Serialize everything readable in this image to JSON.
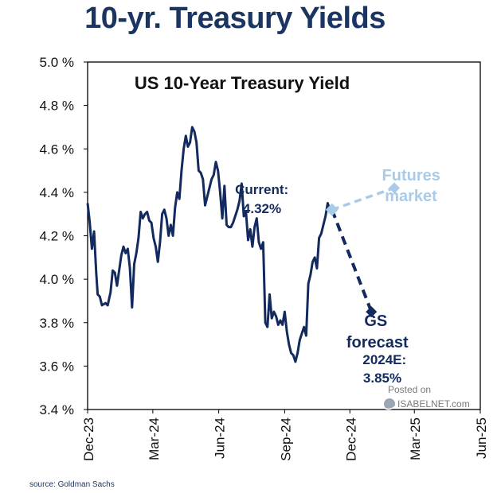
{
  "page_title": "10-yr. Treasury Yields",
  "source_note": "source: Goldman Sachs",
  "watermark": {
    "line1": "Posted on",
    "line2": "ISABELNET.com"
  },
  "colors": {
    "navy": "#132a5e",
    "light_blue": "#a9cbe8",
    "title": "#1b3563"
  },
  "chart_data": {
    "type": "line",
    "title": "US 10-Year Treasury Yield",
    "xlabel": "",
    "ylabel": "",
    "ylim": [
      3.4,
      5.0
    ],
    "xlim": [
      "2023-12-01",
      "2025-06-01"
    ],
    "grid": false,
    "y_ticks": [
      3.4,
      3.6,
      3.8,
      4.0,
      4.2,
      4.4,
      4.6,
      4.8,
      5.0
    ],
    "y_tick_labels": [
      "3.4 %",
      "3.6 %",
      "3.8 %",
      "4.0 %",
      "4.2 %",
      "4.4 %",
      "4.6 %",
      "4.8 %",
      "5.0 %"
    ],
    "x_ticks": [
      "2023-12-01",
      "2024-03-01",
      "2024-06-01",
      "2024-09-01",
      "2024-12-01",
      "2025-03-01",
      "2025-06-01"
    ],
    "x_tick_labels": [
      "Dec-23",
      "Mar-24",
      "Jun-24",
      "Sep-24",
      "Dec-24",
      "Mar-25",
      "Jun-25"
    ],
    "series": [
      {
        "name": "",
        "style": "solid",
        "x": [
          "2023-12-01",
          "2023-12-04",
          "2023-12-07",
          "2023-12-10",
          "2023-12-13",
          "2023-12-15",
          "2023-12-18",
          "2023-12-21",
          "2023-12-26",
          "2023-12-29",
          "2024-01-02",
          "2024-01-05",
          "2024-01-08",
          "2024-01-11",
          "2024-01-14",
          "2024-01-17",
          "2024-01-20",
          "2024-01-23",
          "2024-01-26",
          "2024-01-29",
          "2024-02-01",
          "2024-02-04",
          "2024-02-07",
          "2024-02-10",
          "2024-02-13",
          "2024-02-16",
          "2024-02-19",
          "2024-02-22",
          "2024-02-25",
          "2024-02-28",
          "2024-03-02",
          "2024-03-05",
          "2024-03-08",
          "2024-03-11",
          "2024-03-14",
          "2024-03-17",
          "2024-03-20",
          "2024-03-23",
          "2024-03-26",
          "2024-03-29",
          "2024-04-01",
          "2024-04-04",
          "2024-04-07",
          "2024-04-10",
          "2024-04-13",
          "2024-04-16",
          "2024-04-19",
          "2024-04-22",
          "2024-04-25",
          "2024-04-28",
          "2024-05-01",
          "2024-05-04",
          "2024-05-07",
          "2024-05-10",
          "2024-05-13",
          "2024-05-16",
          "2024-05-19",
          "2024-05-22",
          "2024-05-25",
          "2024-05-28",
          "2024-05-31",
          "2024-06-03",
          "2024-06-06",
          "2024-06-09",
          "2024-06-12",
          "2024-06-15",
          "2024-06-18",
          "2024-06-21",
          "2024-06-24",
          "2024-06-27",
          "2024-06-30",
          "2024-07-03",
          "2024-07-06",
          "2024-07-09",
          "2024-07-12",
          "2024-07-15",
          "2024-07-18",
          "2024-07-21",
          "2024-07-24",
          "2024-07-27",
          "2024-07-30",
          "2024-08-02",
          "2024-08-05",
          "2024-08-08",
          "2024-08-11",
          "2024-08-14",
          "2024-08-17",
          "2024-08-20",
          "2024-08-23",
          "2024-08-26",
          "2024-08-29",
          "2024-09-01",
          "2024-09-04",
          "2024-09-07",
          "2024-09-10",
          "2024-09-13",
          "2024-09-16",
          "2024-09-19",
          "2024-09-22",
          "2024-09-25",
          "2024-09-28",
          "2024-10-01",
          "2024-10-04",
          "2024-10-07",
          "2024-10-10",
          "2024-10-13",
          "2024-10-16",
          "2024-10-19",
          "2024-10-22",
          "2024-10-25",
          "2024-10-28",
          "2024-10-31",
          "2024-11-04"
        ],
        "values": [
          4.35,
          4.26,
          4.14,
          4.22,
          4.03,
          3.93,
          3.92,
          3.88,
          3.89,
          3.88,
          3.94,
          4.04,
          4.03,
          3.97,
          4.04,
          4.11,
          4.15,
          4.12,
          4.14,
          4.05,
          3.87,
          4.07,
          4.12,
          4.19,
          4.31,
          4.28,
          4.3,
          4.31,
          4.27,
          4.26,
          4.19,
          4.15,
          4.08,
          4.17,
          4.3,
          4.32,
          4.28,
          4.2,
          4.25,
          4.2,
          4.33,
          4.4,
          4.37,
          4.5,
          4.6,
          4.66,
          4.61,
          4.63,
          4.7,
          4.68,
          4.63,
          4.5,
          4.49,
          4.46,
          4.34,
          4.38,
          4.42,
          4.46,
          4.48,
          4.54,
          4.5,
          4.4,
          4.28,
          4.43,
          4.25,
          4.24,
          4.24,
          4.26,
          4.29,
          4.32,
          4.36,
          4.44,
          4.29,
          4.31,
          4.18,
          4.23,
          4.15,
          4.24,
          4.28,
          4.17,
          4.14,
          4.17,
          3.8,
          3.78,
          3.93,
          3.82,
          3.85,
          3.83,
          3.79,
          3.81,
          3.79,
          3.85,
          3.76,
          3.7,
          3.66,
          3.65,
          3.62,
          3.66,
          3.72,
          3.75,
          3.78,
          3.74,
          3.98,
          4.02,
          4.08,
          4.1,
          4.05,
          4.19,
          4.21,
          4.25,
          4.29,
          4.35,
          4.31
        ]
      },
      {
        "name": "GS forecast",
        "style": "dashed",
        "x": [
          "2024-11-06",
          "2024-12-31"
        ],
        "values": [
          4.32,
          3.85
        ]
      },
      {
        "name": "Futures market",
        "style": "dashed-light",
        "x": [
          "2024-11-06",
          "2025-02-01"
        ],
        "values": [
          4.32,
          4.42
        ]
      }
    ],
    "annotations": [
      {
        "id": "current",
        "lines": [
          "Current:",
          "4.32%"
        ]
      },
      {
        "id": "futures",
        "lines": [
          "Futures",
          "market"
        ]
      },
      {
        "id": "gs",
        "lines": [
          "GS",
          "forecast",
          "2024E:",
          "3.85%"
        ]
      }
    ]
  }
}
